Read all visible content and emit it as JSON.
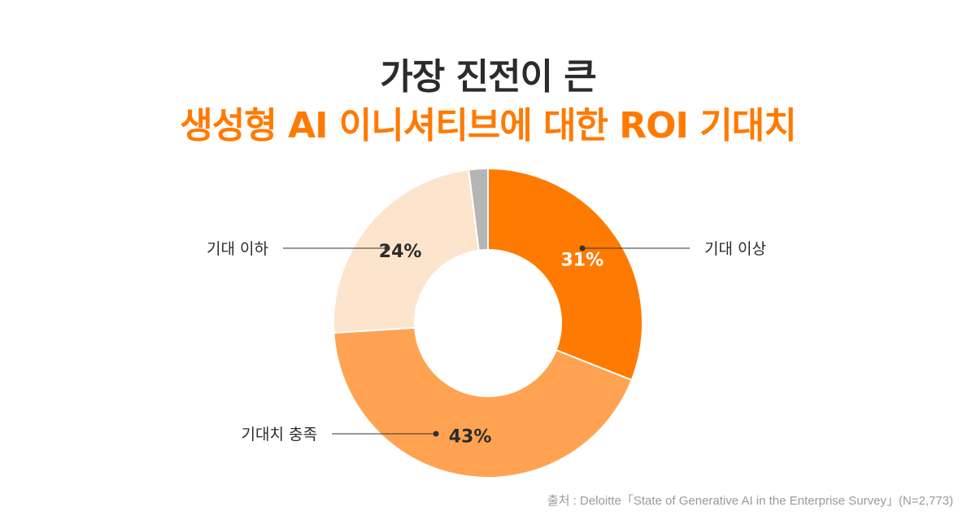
{
  "title": {
    "line1": "가장 진전이 큰",
    "line2": "생성형 AI 이니셔티브에 대한 ROI 기대치"
  },
  "chart_data": {
    "type": "pie",
    "donut": true,
    "title": "가장 진전이 큰 생성형 AI 이니셔티브에 대한 ROI 기대치",
    "slices": [
      {
        "label": "기대 이상",
        "value": 31,
        "value_label": "31%",
        "color": "#ff7a00",
        "label_color": "#ffffff"
      },
      {
        "label": "기대치 충족",
        "value": 43,
        "value_label": "43%",
        "color": "#ffa352",
        "label_color": "#2b2b2b"
      },
      {
        "label": "기대 이하",
        "value": 24,
        "value_label": "24%",
        "color": "#fde4cc",
        "label_color": "#2b2b2b"
      },
      {
        "label": "",
        "value": 2,
        "value_label": "",
        "color": "#b5b5b5",
        "label_color": "#2b2b2b"
      }
    ]
  },
  "source": "출처 : Deloitte「State of Generative AI in the Enterprise Survey」(N=2,773)"
}
